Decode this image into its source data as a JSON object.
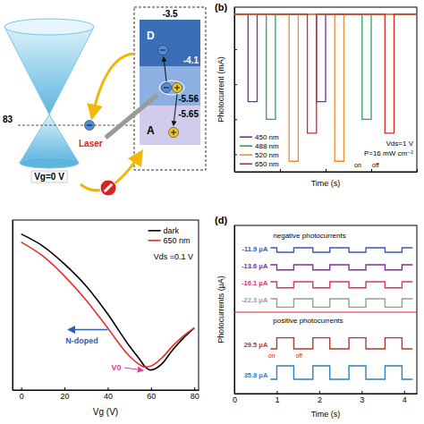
{
  "diagram": {
    "levels": [
      -3.5,
      -4.1,
      -5.56,
      -5.65
    ],
    "donor": "D",
    "acceptor": "A",
    "laser": "Laser",
    "gate": "Vg=0 V",
    "fermi": "83"
  },
  "chart_data": [
    {
      "type": "line",
      "title": "(b)",
      "x_label": "Time (s)",
      "y_label": "Photocurrent (mA)",
      "xlim": [
        0,
        80
      ],
      "xticks": [
        0,
        20,
        40,
        60,
        80
      ],
      "ylim": [
        -0.45,
        0.02
      ],
      "yticks": [
        0,
        -0.1,
        -0.2,
        -0.3,
        -0.4
      ],
      "tick_labels": false,
      "legend": "lower left",
      "series": [
        {
          "name": "450 nm",
          "color": "#7030a0",
          "x": [
            0,
            6,
            6,
            10,
            10,
            36,
            36,
            40,
            40,
            80
          ],
          "values": [
            0,
            0,
            -0.25,
            -0.25,
            0,
            0,
            -0.25,
            -0.25,
            0,
            0
          ]
        },
        {
          "name": "488 nm",
          "color": "#2ca25f",
          "x": [
            0,
            14,
            14,
            18,
            18,
            56,
            56,
            60,
            60,
            80
          ],
          "values": [
            0,
            0,
            -0.3,
            -0.3,
            0,
            0,
            -0.3,
            -0.3,
            0,
            0
          ]
        },
        {
          "name": "520 nm",
          "color": "#f28e2b",
          "x": [
            0,
            24,
            24,
            28,
            28,
            44,
            44,
            48,
            48,
            80
          ],
          "values": [
            0,
            0,
            -0.42,
            -0.42,
            0,
            0,
            -0.42,
            -0.42,
            0,
            0
          ]
        },
        {
          "name": "650 nm",
          "color": "#d62728",
          "x": [
            0,
            32,
            32,
            36,
            36,
            66,
            66,
            70,
            70,
            80
          ],
          "values": [
            0,
            0,
            -0.34,
            -0.34,
            0,
            0,
            -0.34,
            -0.34,
            0,
            0
          ]
        }
      ],
      "annotations": [
        "Vds=1 V",
        "P=16 mW cm⁻²",
        "on",
        "off"
      ]
    },
    {
      "type": "line",
      "x_label": "Vg (V)",
      "xlim": [
        -4,
        82
      ],
      "xticks": [
        0,
        20,
        40,
        60,
        80
      ],
      "ylim": [
        0,
        0.85
      ],
      "yticks": [],
      "tick_labels": "x",
      "legend": "upper right",
      "x": [
        0,
        10,
        20,
        30,
        40,
        50,
        55,
        57,
        60,
        65,
        70,
        75,
        80
      ],
      "series": [
        {
          "name": "dark",
          "color": "#000000",
          "values": [
            0.78,
            0.72,
            0.63,
            0.52,
            0.38,
            0.22,
            0.15,
            0.12,
            0.1,
            0.13,
            0.2,
            0.26,
            0.31
          ]
        },
        {
          "name": "650 nm",
          "color": "#e8302a",
          "values": [
            0.74,
            0.67,
            0.57,
            0.45,
            0.31,
            0.17,
            0.125,
            0.115,
            0.12,
            0.16,
            0.22,
            0.27,
            0.31
          ]
        }
      ],
      "annotations": [
        "Vds =0.1 V",
        "N-doped",
        "V0"
      ]
    },
    {
      "type": "line",
      "title": "(d)",
      "x_label": "Time (s)",
      "y_label": "Photocurrents (μA)",
      "xlim": [
        0,
        4.3
      ],
      "xticks": [
        0,
        1,
        2,
        3,
        4
      ],
      "tick_labels": "x",
      "x": [
        0.85,
        1.0,
        1.0,
        1.4,
        1.4,
        1.85,
        1.85,
        2.25,
        2.25,
        2.7,
        2.7,
        3.1,
        3.1,
        3.55,
        3.55,
        3.95,
        3.95,
        4.2
      ],
      "series": [
        {
          "name": "-11.9 μA",
          "color": "#3b5ba5",
          "values": [
            0,
            0,
            -11.9,
            -11.9,
            0,
            0,
            -11.9,
            -11.9,
            0,
            0,
            -11.9,
            -11.9,
            0,
            0,
            -11.9,
            -11.9,
            0,
            0
          ]
        },
        {
          "name": "-13.6 μA",
          "color": "#7b3294",
          "values": [
            0,
            0,
            -13.6,
            -13.6,
            0,
            0,
            -13.6,
            -13.6,
            0,
            0,
            -13.6,
            -13.6,
            0,
            0,
            -13.6,
            -13.6,
            0,
            0
          ]
        },
        {
          "name": "-16.1 μA",
          "color": "#d6336c",
          "values": [
            0,
            0,
            -16.1,
            -16.1,
            0,
            0,
            -16.1,
            -16.1,
            0,
            0,
            -16.1,
            -16.1,
            0,
            0,
            -16.1,
            -16.1,
            0,
            0
          ]
        },
        {
          "name": "-22.3 μA",
          "color": "#9a9a9a",
          "values": [
            0,
            0,
            -22.3,
            -22.3,
            0,
            0,
            -22.3,
            -22.3,
            0,
            0,
            -22.3,
            -22.3,
            0,
            0,
            -22.3,
            -22.3,
            0,
            0
          ]
        },
        {
          "name": "29.5 μA",
          "color": "#b03a2e",
          "values": [
            0,
            0,
            29.5,
            29.5,
            0,
            0,
            29.5,
            29.5,
            0,
            0,
            29.5,
            29.5,
            0,
            0,
            29.5,
            29.5,
            0,
            0
          ]
        },
        {
          "name": "35.8 μA",
          "color": "#2f7fbf",
          "values": [
            0,
            0,
            35.8,
            35.8,
            0,
            0,
            35.8,
            35.8,
            0,
            0,
            35.8,
            35.8,
            0,
            0,
            35.8,
            35.8,
            0,
            0
          ]
        }
      ],
      "groups": [
        "negative photocurrents",
        "positive photocurrents"
      ],
      "annotations": [
        "on",
        "off"
      ]
    }
  ]
}
